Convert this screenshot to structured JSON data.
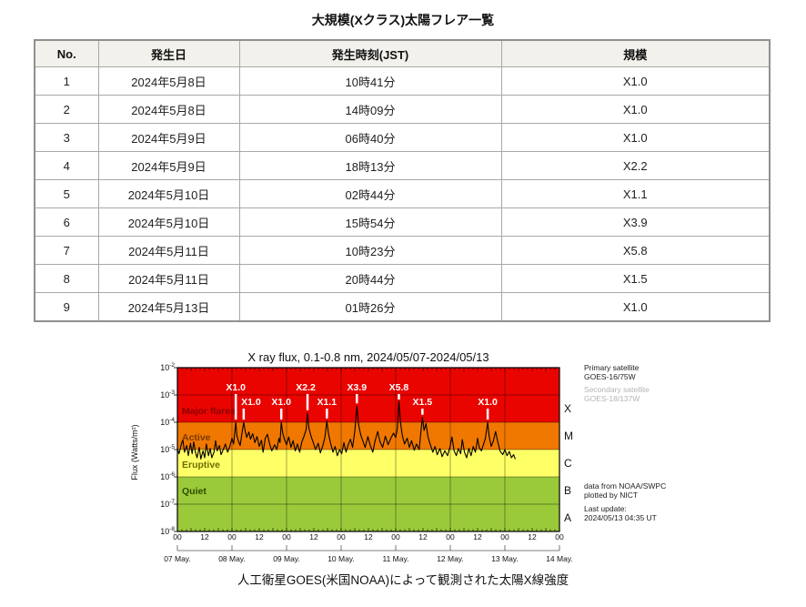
{
  "page": {
    "table_title": "大規模(Xクラス)太陽フレア一覧",
    "caption": "人工衛星GOES(米国NOAA)によって観測された太陽X線強度"
  },
  "table": {
    "headers": [
      "No.",
      "発生日",
      "発生時刻(JST)",
      "規模"
    ],
    "rows": [
      [
        "1",
        "2024年5月8日",
        "10時41分",
        "X1.0"
      ],
      [
        "2",
        "2024年5月8日",
        "14時09分",
        "X1.0"
      ],
      [
        "3",
        "2024年5月9日",
        "06時40分",
        "X1.0"
      ],
      [
        "4",
        "2024年5月9日",
        "18時13分",
        "X2.2"
      ],
      [
        "5",
        "2024年5月10日",
        "02時44分",
        "X1.1"
      ],
      [
        "6",
        "2024年5月10日",
        "15時54分",
        "X3.9"
      ],
      [
        "7",
        "2024年5月11日",
        "10時23分",
        "X5.8"
      ],
      [
        "8",
        "2024年5月11日",
        "20時44分",
        "X1.5"
      ],
      [
        "9",
        "2024年5月13日",
        "01時26分",
        "X1.0"
      ]
    ]
  },
  "chart_data": {
    "type": "line",
    "title": "X ray flux, 0.1-0.8 nm, 2024/05/07-2024/05/13",
    "ylabel": "Flux (Watts/m²)",
    "y_tick_exponents": [
      -2,
      -3,
      -4,
      -5,
      -6,
      -7,
      -8
    ],
    "x_days": 7,
    "hour_tick_labels": [
      "00",
      "12"
    ],
    "date_labels": [
      "07 May.",
      "08 May.",
      "09 May.",
      "10 May.",
      "11 May.",
      "12 May.",
      "13 May.",
      "14 May."
    ],
    "bands": [
      {
        "name": "Major flares",
        "fill": "#ea0400",
        "label_color": "#8c0000",
        "log_from": -4,
        "log_to": -2,
        "label_log": -3.7
      },
      {
        "name": "Active",
        "fill": "#f07800",
        "label_color": "#7a3800",
        "log_from": -5,
        "log_to": -4,
        "label_log": -4.67
      },
      {
        "name": "Eruptive",
        "fill": "#ffff66",
        "label_color": "#6e6e00",
        "log_from": -6,
        "log_to": -5,
        "label_log": -5.67
      },
      {
        "name": "Quiet",
        "fill": "#9aca3a",
        "label_color": "#2c4d00",
        "log_from": -8,
        "log_to": -6,
        "label_log": -6.63
      }
    ],
    "class_letters": [
      {
        "label": "X",
        "log_center": -3.5
      },
      {
        "label": "M",
        "log_center": -4.5
      },
      {
        "label": "C",
        "log_center": -5.5
      },
      {
        "label": "B",
        "log_center": -6.5
      },
      {
        "label": "A",
        "log_center": -7.5
      }
    ],
    "annotations": [
      {
        "label": "X1.0",
        "t": 1.07,
        "row": "high",
        "dx": 0
      },
      {
        "label": "X1.0",
        "t": 1.215,
        "row": "low",
        "dx": 8
      },
      {
        "label": "X1.0",
        "t": 1.903,
        "row": "low",
        "dx": 0
      },
      {
        "label": "X2.2",
        "t": 2.384,
        "row": "high",
        "dx": -2
      },
      {
        "label": "X1.1",
        "t": 2.739,
        "row": "low",
        "dx": 0
      },
      {
        "label": "X3.9",
        "t": 3.288,
        "row": "high",
        "dx": 0
      },
      {
        "label": "X5.8",
        "t": 4.058,
        "row": "high",
        "dx": 0
      },
      {
        "label": "X1.5",
        "t": 4.489,
        "row": "low",
        "dx": 0
      },
      {
        "label": "X1.0",
        "t": 5.685,
        "row": "low",
        "dx": 0
      }
    ],
    "annotation_color": "#ffffff",
    "series": [
      {
        "name": "GOES X-ray flux",
        "color": "#000000",
        "points": [
          [
            0.0,
            1.1e-05
          ],
          [
            0.03,
            7e-06
          ],
          [
            0.07,
            1.5e-05
          ],
          [
            0.1,
            2.3e-05
          ],
          [
            0.13,
            8e-06
          ],
          [
            0.17,
            1.4e-05
          ],
          [
            0.2,
            6e-06
          ],
          [
            0.24,
            1.7e-05
          ],
          [
            0.27,
            7e-06
          ],
          [
            0.3,
            1.9e-05
          ],
          [
            0.33,
            8e-06
          ],
          [
            0.36,
            5e-06
          ],
          [
            0.4,
            1.2e-05
          ],
          [
            0.43,
            4.5e-06
          ],
          [
            0.47,
            9e-06
          ],
          [
            0.5,
            5e-06
          ],
          [
            0.53,
            1.6e-05
          ],
          [
            0.57,
            6e-06
          ],
          [
            0.6,
            1.1e-05
          ],
          [
            0.63,
            5e-06
          ],
          [
            0.67,
            8e-06
          ],
          [
            0.7,
            2.1e-05
          ],
          [
            0.73,
            9e-06
          ],
          [
            0.77,
            1.4e-05
          ],
          [
            0.8,
            6.5e-06
          ],
          [
            0.84,
            1e-05
          ],
          [
            0.88,
            1.6e-05
          ],
          [
            0.92,
            8e-06
          ],
          [
            0.96,
            1.3e-05
          ],
          [
            1.0,
            2.6e-05
          ],
          [
            1.03,
            1.6e-05
          ],
          [
            1.05,
            4e-05
          ],
          [
            1.07,
            0.0001
          ],
          [
            1.09,
            3.2e-05
          ],
          [
            1.12,
            2e-05
          ],
          [
            1.15,
            1.4e-05
          ],
          [
            1.18,
            3.6e-05
          ],
          [
            1.215,
            0.0001
          ],
          [
            1.24,
            5e-05
          ],
          [
            1.27,
            2.8e-05
          ],
          [
            1.31,
            4.4e-05
          ],
          [
            1.34,
            2.4e-05
          ],
          [
            1.38,
            3.8e-05
          ],
          [
            1.42,
            1.8e-05
          ],
          [
            1.46,
            3e-05
          ],
          [
            1.5,
            1.3e-05
          ],
          [
            1.54,
            2.2e-05
          ],
          [
            1.57,
            8e-06
          ],
          [
            1.61,
            2.6e-05
          ],
          [
            1.65,
            3.6e-05
          ],
          [
            1.69,
            1.6e-05
          ],
          [
            1.73,
            9e-06
          ],
          [
            1.78,
            1.5e-05
          ],
          [
            1.82,
            1e-05
          ],
          [
            1.86,
            2.6e-05
          ],
          [
            1.88,
            1.8e-05
          ],
          [
            1.903,
            0.0001
          ],
          [
            1.93,
            4e-05
          ],
          [
            1.96,
            2.4e-05
          ],
          [
            2.0,
            1.5e-05
          ],
          [
            2.04,
            2.9e-05
          ],
          [
            2.08,
            1.2e-05
          ],
          [
            2.12,
            2.1e-05
          ],
          [
            2.16,
            9e-06
          ],
          [
            2.2,
            1.6e-05
          ],
          [
            2.24,
            8e-06
          ],
          [
            2.28,
            1.9e-05
          ],
          [
            2.32,
            3.1e-05
          ],
          [
            2.36,
            5.5e-05
          ],
          [
            2.384,
            0.00022
          ],
          [
            2.41,
            6e-05
          ],
          [
            2.45,
            3e-05
          ],
          [
            2.49,
            1.8e-05
          ],
          [
            2.53,
            1e-05
          ],
          [
            2.58,
            1.7e-05
          ],
          [
            2.62,
            7.5e-06
          ],
          [
            2.66,
            1.3e-05
          ],
          [
            2.7,
            2.6e-05
          ],
          [
            2.739,
            0.00011
          ],
          [
            2.77,
            3.6e-05
          ],
          [
            2.81,
            1.6e-05
          ],
          [
            2.85,
            8e-06
          ],
          [
            2.89,
            1.3e-05
          ],
          [
            2.93,
            6e-06
          ],
          [
            2.97,
            1e-05
          ],
          [
            3.01,
            7e-06
          ],
          [
            3.05,
            1.8e-05
          ],
          [
            3.09,
            8e-06
          ],
          [
            3.13,
            1.5e-05
          ],
          [
            3.17,
            2.4e-05
          ],
          [
            3.21,
            1.2e-05
          ],
          [
            3.25,
            4.6e-05
          ],
          [
            3.288,
            0.00039
          ],
          [
            3.32,
            8e-05
          ],
          [
            3.36,
            3.4e-05
          ],
          [
            3.4,
            2e-05
          ],
          [
            3.44,
            1.2e-05
          ],
          [
            3.49,
            3e-05
          ],
          [
            3.53,
            1.5e-05
          ],
          [
            3.58,
            8e-06
          ],
          [
            3.62,
            2e-05
          ],
          [
            3.67,
            4.6e-05
          ],
          [
            3.71,
            2e-05
          ],
          [
            3.76,
            1.2e-05
          ],
          [
            3.81,
            3.1e-05
          ],
          [
            3.86,
            1.5e-05
          ],
          [
            3.91,
            2.6e-05
          ],
          [
            3.96,
            4e-05
          ],
          [
            4.0,
            2.8e-05
          ],
          [
            4.03,
            6e-05
          ],
          [
            4.058,
            0.00058
          ],
          [
            4.09,
            9e-05
          ],
          [
            4.12,
            3.4e-05
          ],
          [
            4.16,
            1.6e-05
          ],
          [
            4.21,
            2.6e-05
          ],
          [
            4.25,
            1.2e-05
          ],
          [
            4.29,
            2.1e-05
          ],
          [
            4.34,
            9.5e-06
          ],
          [
            4.38,
            1.6e-05
          ],
          [
            4.43,
            1e-05
          ],
          [
            4.46,
            4.2e-05
          ],
          [
            4.489,
            0.00015
          ],
          [
            4.52,
            5e-05
          ],
          [
            4.555,
            9e-05
          ],
          [
            4.59,
            3e-05
          ],
          [
            4.63,
            1.6e-05
          ],
          [
            4.68,
            8e-06
          ],
          [
            4.72,
            1.3e-05
          ],
          [
            4.76,
            6.5e-06
          ],
          [
            4.81,
            1.1e-05
          ],
          [
            4.85,
            5.5e-06
          ],
          [
            4.9,
            9e-06
          ],
          [
            4.95,
            6e-06
          ],
          [
            5.0,
            1.4e-05
          ],
          [
            5.03,
            2.9e-05
          ],
          [
            5.07,
            9e-06
          ],
          [
            5.11,
            6e-06
          ],
          [
            5.15,
            1.1e-05
          ],
          [
            5.19,
            7e-06
          ],
          [
            5.22,
            2.3e-05
          ],
          [
            5.26,
            8e-06
          ],
          [
            5.3,
            5e-06
          ],
          [
            5.34,
            1.1e-05
          ],
          [
            5.38,
            6e-06
          ],
          [
            5.42,
            1.3e-05
          ],
          [
            5.46,
            8e-06
          ],
          [
            5.5,
            2.6e-05
          ],
          [
            5.53,
            1.2e-05
          ],
          [
            5.57,
            9e-06
          ],
          [
            5.61,
            1.6e-05
          ],
          [
            5.64,
            2.4e-05
          ],
          [
            5.685,
            0.0001
          ],
          [
            5.71,
            3.2e-05
          ],
          [
            5.75,
            1.3e-05
          ],
          [
            5.79,
            2.1e-05
          ],
          [
            5.83,
            4.6e-05
          ],
          [
            5.87,
            1.9e-05
          ],
          [
            5.91,
            9e-06
          ],
          [
            5.96,
            6.5e-06
          ],
          [
            6.0,
            1e-05
          ],
          [
            6.04,
            6e-06
          ],
          [
            6.08,
            8.5e-06
          ],
          [
            6.12,
            5e-06
          ],
          [
            6.16,
            6.5e-06
          ],
          [
            6.19,
            4.5e-06
          ]
        ]
      }
    ],
    "legend": {
      "primary": [
        "Primary satellite",
        "GOES-16/75W"
      ],
      "secondary": [
        "Secondary satellite",
        "GOES-18/137W"
      ],
      "secondary_color": "#b4b4b4",
      "credit": [
        "data from NOAA/SWPC",
        "plotted by NICT"
      ],
      "update": [
        "Last update:",
        "2024/05/13 04:35 UT"
      ]
    }
  }
}
